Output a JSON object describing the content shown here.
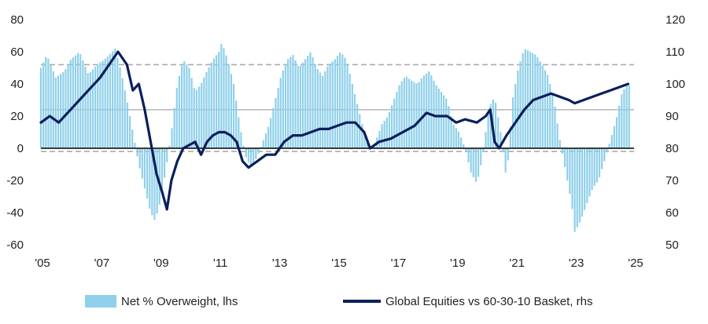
{
  "chart_data": {
    "type": "bar+line",
    "title": "",
    "xlabel": "",
    "x_ticks": [
      "'05",
      "'07",
      "'09",
      "'11",
      "'13",
      "'15",
      "'17",
      "'19",
      "'21",
      "'23",
      "'25"
    ],
    "x_range": [
      2005,
      2025
    ],
    "y_left": {
      "range": [
        -60,
        80
      ],
      "ticks": [
        "80",
        "60",
        "40",
        "20",
        "0",
        "-20",
        "-40",
        "-60"
      ]
    },
    "y_right": {
      "range": [
        50,
        120
      ],
      "ticks": [
        "120",
        "110",
        "100",
        "90",
        "80",
        "70",
        "60",
        "50"
      ]
    },
    "reference_lines_lhs": [
      {
        "value": 52,
        "style": "dashed",
        "color": "#aaaaaa"
      },
      {
        "value": 24,
        "style": "solid",
        "color": "#bbbbbb"
      },
      {
        "value": -2,
        "style": "dashed",
        "color": "#aaaaaa"
      },
      {
        "value": 0,
        "style": "solid",
        "color": "#000000"
      }
    ],
    "series": [
      {
        "name": "Net % Overweight, lhs",
        "kind": "bar",
        "axis": "left",
        "color": "#8fd0ea",
        "points": [
          [
            2005.0,
            50
          ],
          [
            2005.2,
            58
          ],
          [
            2005.5,
            44
          ],
          [
            2005.8,
            48
          ],
          [
            2006.0,
            55
          ],
          [
            2006.3,
            60
          ],
          [
            2006.6,
            46
          ],
          [
            2006.9,
            52
          ],
          [
            2007.2,
            56
          ],
          [
            2007.5,
            62
          ],
          [
            2007.7,
            48
          ],
          [
            2007.9,
            30
          ],
          [
            2008.1,
            10
          ],
          [
            2008.3,
            -10
          ],
          [
            2008.5,
            -25
          ],
          [
            2008.7,
            -40
          ],
          [
            2008.85,
            -45
          ],
          [
            2009.0,
            -35
          ],
          [
            2009.2,
            -15
          ],
          [
            2009.4,
            10
          ],
          [
            2009.6,
            40
          ],
          [
            2009.8,
            55
          ],
          [
            2010.0,
            50
          ],
          [
            2010.2,
            35
          ],
          [
            2010.4,
            40
          ],
          [
            2010.6,
            48
          ],
          [
            2010.8,
            55
          ],
          [
            2011.0,
            60
          ],
          [
            2011.1,
            66
          ],
          [
            2011.3,
            55
          ],
          [
            2011.5,
            40
          ],
          [
            2011.7,
            15
          ],
          [
            2011.9,
            -5
          ],
          [
            2012.1,
            -12
          ],
          [
            2012.3,
            -5
          ],
          [
            2012.5,
            5
          ],
          [
            2012.7,
            15
          ],
          [
            2012.9,
            30
          ],
          [
            2013.1,
            45
          ],
          [
            2013.3,
            55
          ],
          [
            2013.5,
            58
          ],
          [
            2013.7,
            50
          ],
          [
            2013.9,
            55
          ],
          [
            2014.1,
            60
          ],
          [
            2014.3,
            50
          ],
          [
            2014.5,
            45
          ],
          [
            2014.7,
            52
          ],
          [
            2014.9,
            55
          ],
          [
            2015.1,
            60
          ],
          [
            2015.3,
            55
          ],
          [
            2015.5,
            40
          ],
          [
            2015.7,
            25
          ],
          [
            2015.9,
            10
          ],
          [
            2016.1,
            -2
          ],
          [
            2016.3,
            5
          ],
          [
            2016.5,
            15
          ],
          [
            2016.7,
            20
          ],
          [
            2016.9,
            30
          ],
          [
            2017.1,
            40
          ],
          [
            2017.3,
            45
          ],
          [
            2017.5,
            42
          ],
          [
            2017.7,
            40
          ],
          [
            2017.9,
            45
          ],
          [
            2018.1,
            48
          ],
          [
            2018.3,
            40
          ],
          [
            2018.5,
            35
          ],
          [
            2018.7,
            30
          ],
          [
            2018.9,
            15
          ],
          [
            2019.1,
            10
          ],
          [
            2019.3,
            0
          ],
          [
            2019.5,
            -15
          ],
          [
            2019.7,
            -22
          ],
          [
            2019.9,
            -5
          ],
          [
            2020.1,
            25
          ],
          [
            2020.3,
            32
          ],
          [
            2020.5,
            10
          ],
          [
            2020.7,
            -20
          ],
          [
            2020.9,
            30
          ],
          [
            2021.1,
            50
          ],
          [
            2021.3,
            62
          ],
          [
            2021.5,
            60
          ],
          [
            2021.7,
            58
          ],
          [
            2021.9,
            52
          ],
          [
            2022.1,
            45
          ],
          [
            2022.3,
            30
          ],
          [
            2022.5,
            5
          ],
          [
            2022.7,
            -15
          ],
          [
            2022.9,
            -35
          ],
          [
            2023.0,
            -52
          ],
          [
            2023.2,
            -45
          ],
          [
            2023.4,
            -35
          ],
          [
            2023.6,
            -25
          ],
          [
            2023.8,
            -20
          ],
          [
            2024.0,
            -8
          ],
          [
            2024.2,
            5
          ],
          [
            2024.4,
            18
          ],
          [
            2024.6,
            35
          ],
          [
            2024.8,
            40
          ],
          [
            2024.9,
            38
          ]
        ]
      },
      {
        "name": "Global Equities vs 60-30-10 Basket, rhs",
        "kind": "line",
        "axis": "right",
        "color": "#0b1f5c",
        "points": [
          [
            2005.0,
            88
          ],
          [
            2005.3,
            90
          ],
          [
            2005.6,
            88
          ],
          [
            2006.0,
            92
          ],
          [
            2006.3,
            95
          ],
          [
            2006.6,
            98
          ],
          [
            2007.0,
            102
          ],
          [
            2007.3,
            106
          ],
          [
            2007.6,
            110
          ],
          [
            2007.9,
            106
          ],
          [
            2008.1,
            98
          ],
          [
            2008.3,
            100
          ],
          [
            2008.5,
            92
          ],
          [
            2008.7,
            82
          ],
          [
            2008.9,
            72
          ],
          [
            2009.1,
            66
          ],
          [
            2009.25,
            61
          ],
          [
            2009.4,
            70
          ],
          [
            2009.6,
            76
          ],
          [
            2009.8,
            80
          ],
          [
            2010.0,
            81
          ],
          [
            2010.2,
            82
          ],
          [
            2010.4,
            78
          ],
          [
            2010.6,
            82
          ],
          [
            2010.8,
            84
          ],
          [
            2011.0,
            85
          ],
          [
            2011.2,
            85
          ],
          [
            2011.4,
            84
          ],
          [
            2011.6,
            82
          ],
          [
            2011.8,
            76
          ],
          [
            2012.0,
            74
          ],
          [
            2012.3,
            76
          ],
          [
            2012.6,
            78
          ],
          [
            2012.9,
            78
          ],
          [
            2013.2,
            82
          ],
          [
            2013.5,
            84
          ],
          [
            2013.8,
            84
          ],
          [
            2014.1,
            85
          ],
          [
            2014.4,
            86
          ],
          [
            2014.7,
            86
          ],
          [
            2015.0,
            87
          ],
          [
            2015.3,
            88
          ],
          [
            2015.6,
            88
          ],
          [
            2015.9,
            85
          ],
          [
            2016.1,
            80
          ],
          [
            2016.4,
            82
          ],
          [
            2016.8,
            83
          ],
          [
            2017.2,
            85
          ],
          [
            2017.6,
            87
          ],
          [
            2018.0,
            91
          ],
          [
            2018.3,
            90
          ],
          [
            2018.7,
            90
          ],
          [
            2019.0,
            88
          ],
          [
            2019.3,
            89
          ],
          [
            2019.7,
            88
          ],
          [
            2020.0,
            90
          ],
          [
            2020.15,
            92
          ],
          [
            2020.3,
            82
          ],
          [
            2020.45,
            80
          ],
          [
            2020.7,
            84
          ],
          [
            2021.0,
            88
          ],
          [
            2021.3,
            92
          ],
          [
            2021.6,
            95
          ],
          [
            2021.9,
            96
          ],
          [
            2022.2,
            97
          ],
          [
            2022.5,
            96
          ],
          [
            2022.8,
            95
          ],
          [
            2023.0,
            94
          ],
          [
            2023.3,
            95
          ],
          [
            2023.6,
            96
          ],
          [
            2023.9,
            97
          ],
          [
            2024.2,
            98
          ],
          [
            2024.5,
            99
          ],
          [
            2024.8,
            100
          ]
        ]
      }
    ],
    "legend": {
      "position": "bottom",
      "entries": [
        "Net % Overweight, lhs",
        "Global Equities vs 60-30-10 Basket, rhs"
      ]
    }
  }
}
